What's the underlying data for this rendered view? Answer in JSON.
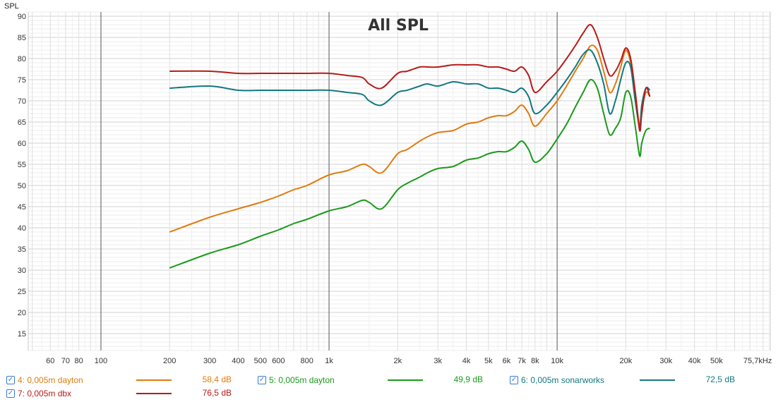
{
  "chart_data": {
    "type": "line",
    "title": "All SPL",
    "ylabel": "SPL",
    "x_scale": "log",
    "xlim": [
      48,
      86000
    ],
    "ylim": [
      11,
      91
    ],
    "grid": true,
    "y_ticks": [
      15,
      20,
      25,
      30,
      35,
      40,
      45,
      50,
      55,
      60,
      65,
      70,
      75,
      80,
      85,
      90
    ],
    "x_ticks": [
      {
        "v": 60,
        "label": "60"
      },
      {
        "v": 70,
        "label": "70"
      },
      {
        "v": 80,
        "label": "80"
      },
      {
        "v": 100,
        "label": "100"
      },
      {
        "v": 200,
        "label": "200"
      },
      {
        "v": 300,
        "label": "300"
      },
      {
        "v": 400,
        "label": "400"
      },
      {
        "v": 500,
        "label": "500"
      },
      {
        "v": 600,
        "label": "600"
      },
      {
        "v": 800,
        "label": "800"
      },
      {
        "v": 1000,
        "label": "1k"
      },
      {
        "v": 2000,
        "label": "2k"
      },
      {
        "v": 3000,
        "label": "3k"
      },
      {
        "v": 4000,
        "label": "4k"
      },
      {
        "v": 5000,
        "label": "5k"
      },
      {
        "v": 6000,
        "label": "6k"
      },
      {
        "v": 7000,
        "label": "7k"
      },
      {
        "v": 8000,
        "label": "8k"
      },
      {
        "v": 10000,
        "label": "10k"
      },
      {
        "v": 20000,
        "label": "20k"
      },
      {
        "v": 30000,
        "label": "30k"
      },
      {
        "v": 40000,
        "label": "40k"
      },
      {
        "v": 50000,
        "label": "50k"
      },
      {
        "v": 75700,
        "label": "75,7kHz"
      }
    ],
    "series": [
      {
        "name": "4: 0,005m dayton",
        "color": "#e07b10",
        "level": "58,4 dB",
        "points": [
          [
            200,
            39
          ],
          [
            300,
            42.5
          ],
          [
            400,
            44.5
          ],
          [
            500,
            46
          ],
          [
            600,
            47.5
          ],
          [
            700,
            49
          ],
          [
            800,
            50
          ],
          [
            1000,
            52.5
          ],
          [
            1200,
            53.5
          ],
          [
            1400,
            55
          ],
          [
            1500,
            54.5
          ],
          [
            1700,
            53
          ],
          [
            2000,
            57.5
          ],
          [
            2200,
            58.5
          ],
          [
            2500,
            60.5
          ],
          [
            2700,
            61.5
          ],
          [
            3000,
            62.5
          ],
          [
            3500,
            63
          ],
          [
            4000,
            64.5
          ],
          [
            4500,
            65
          ],
          [
            5000,
            66
          ],
          [
            5500,
            66.5
          ],
          [
            6000,
            66.5
          ],
          [
            6500,
            67.5
          ],
          [
            7000,
            69
          ],
          [
            7500,
            67
          ],
          [
            8000,
            64
          ],
          [
            9000,
            67
          ],
          [
            10000,
            70
          ],
          [
            11000,
            73.5
          ],
          [
            12000,
            77
          ],
          [
            13000,
            80
          ],
          [
            14000,
            83
          ],
          [
            15000,
            82
          ],
          [
            16000,
            77
          ],
          [
            17000,
            72
          ],
          [
            18000,
            74
          ],
          [
            19000,
            78
          ],
          [
            20000,
            82
          ],
          [
            21000,
            79
          ],
          [
            22000,
            72
          ],
          [
            23000,
            64
          ],
          [
            23500,
            68
          ],
          [
            24500,
            72
          ],
          [
            25500,
            71
          ]
        ]
      },
      {
        "name": "5: 0,005m dayton",
        "color": "#1a9a1a",
        "level": "49,9 dB",
        "points": [
          [
            200,
            30.5
          ],
          [
            300,
            34
          ],
          [
            400,
            36
          ],
          [
            500,
            38
          ],
          [
            600,
            39.5
          ],
          [
            700,
            41
          ],
          [
            800,
            42
          ],
          [
            1000,
            44
          ],
          [
            1200,
            45
          ],
          [
            1400,
            46.5
          ],
          [
            1500,
            46
          ],
          [
            1700,
            44.5
          ],
          [
            2000,
            49
          ],
          [
            2200,
            50.5
          ],
          [
            2500,
            52
          ],
          [
            2700,
            53
          ],
          [
            3000,
            54
          ],
          [
            3500,
            54.5
          ],
          [
            4000,
            56
          ],
          [
            4500,
            56.5
          ],
          [
            5000,
            57.5
          ],
          [
            5500,
            58
          ],
          [
            6000,
            58
          ],
          [
            6500,
            59
          ],
          [
            7000,
            60.5
          ],
          [
            7500,
            58.5
          ],
          [
            8000,
            55.5
          ],
          [
            9000,
            57.5
          ],
          [
            10000,
            61
          ],
          [
            11000,
            64.5
          ],
          [
            12000,
            68.5
          ],
          [
            13000,
            72
          ],
          [
            14000,
            75
          ],
          [
            15000,
            73
          ],
          [
            16000,
            67
          ],
          [
            17000,
            62
          ],
          [
            18000,
            63.5
          ],
          [
            19000,
            66
          ],
          [
            20000,
            72
          ],
          [
            21000,
            71
          ],
          [
            22000,
            64
          ],
          [
            23000,
            57
          ],
          [
            23500,
            60
          ],
          [
            24500,
            63
          ],
          [
            25500,
            63.5
          ]
        ]
      },
      {
        "name": "6: 0,005m sonarworks",
        "color": "#127880",
        "level": "72,5 dB",
        "points": [
          [
            200,
            73
          ],
          [
            300,
            73.5
          ],
          [
            400,
            72.5
          ],
          [
            500,
            72.5
          ],
          [
            600,
            72.5
          ],
          [
            700,
            72.5
          ],
          [
            800,
            72.5
          ],
          [
            1000,
            72.5
          ],
          [
            1200,
            72
          ],
          [
            1400,
            71.5
          ],
          [
            1500,
            70
          ],
          [
            1700,
            69
          ],
          [
            2000,
            72
          ],
          [
            2200,
            72.5
          ],
          [
            2500,
            73.5
          ],
          [
            2700,
            74
          ],
          [
            3000,
            73.5
          ],
          [
            3500,
            74.5
          ],
          [
            4000,
            74
          ],
          [
            4500,
            74
          ],
          [
            5000,
            73
          ],
          [
            5500,
            73
          ],
          [
            6000,
            72.5
          ],
          [
            6500,
            72
          ],
          [
            7000,
            73
          ],
          [
            7500,
            71
          ],
          [
            8000,
            67
          ],
          [
            9000,
            69
          ],
          [
            10000,
            72
          ],
          [
            11000,
            75
          ],
          [
            12000,
            78
          ],
          [
            13000,
            81
          ],
          [
            14000,
            82
          ],
          [
            15000,
            79
          ],
          [
            16000,
            74
          ],
          [
            17000,
            67
          ],
          [
            18000,
            70
          ],
          [
            19000,
            75
          ],
          [
            20000,
            79
          ],
          [
            21000,
            78
          ],
          [
            22000,
            70
          ],
          [
            23000,
            64
          ],
          [
            23500,
            69
          ],
          [
            24500,
            73
          ],
          [
            25500,
            72.5
          ]
        ]
      },
      {
        "name": "7: 0,005m dbx",
        "color": "#b81a1a",
        "level": "76,5 dB",
        "points": [
          [
            200,
            77
          ],
          [
            300,
            77
          ],
          [
            400,
            76.5
          ],
          [
            500,
            76.5
          ],
          [
            600,
            76.5
          ],
          [
            700,
            76.5
          ],
          [
            800,
            76.5
          ],
          [
            1000,
            76.5
          ],
          [
            1200,
            76
          ],
          [
            1400,
            75.5
          ],
          [
            1500,
            74
          ],
          [
            1700,
            73
          ],
          [
            2000,
            76.5
          ],
          [
            2200,
            77
          ],
          [
            2500,
            78
          ],
          [
            2700,
            78
          ],
          [
            3000,
            78
          ],
          [
            3500,
            78.5
          ],
          [
            4000,
            78.5
          ],
          [
            4500,
            78.5
          ],
          [
            5000,
            78
          ],
          [
            5500,
            78
          ],
          [
            6000,
            77.5
          ],
          [
            6500,
            77
          ],
          [
            7000,
            78
          ],
          [
            7500,
            76
          ],
          [
            8000,
            72
          ],
          [
            9000,
            74.5
          ],
          [
            10000,
            77
          ],
          [
            11000,
            80
          ],
          [
            12000,
            83
          ],
          [
            13000,
            86
          ],
          [
            14000,
            88
          ],
          [
            15000,
            85
          ],
          [
            16000,
            80
          ],
          [
            17000,
            76
          ],
          [
            18000,
            77
          ],
          [
            19000,
            79.5
          ],
          [
            20000,
            82.5
          ],
          [
            21000,
            80
          ],
          [
            22000,
            72
          ],
          [
            23000,
            63
          ],
          [
            23500,
            67
          ],
          [
            24500,
            73
          ],
          [
            25500,
            71
          ]
        ]
      }
    ]
  }
}
